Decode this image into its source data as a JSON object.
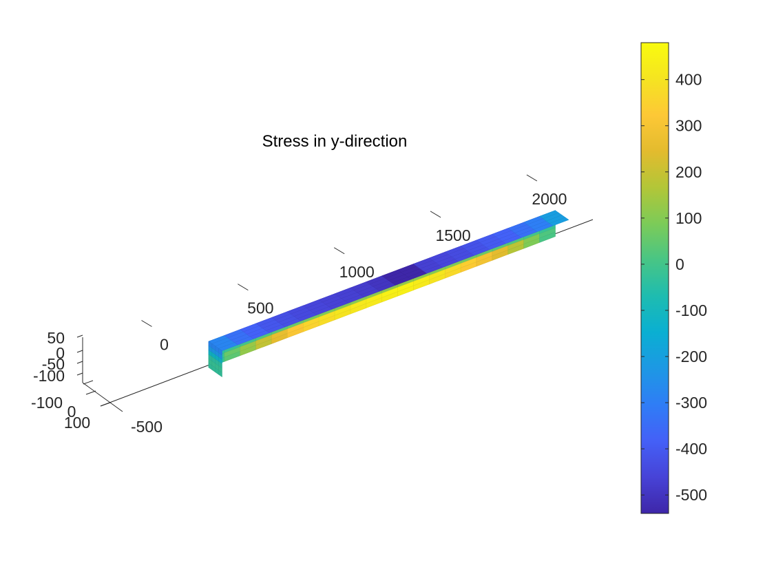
{
  "chart_data": {
    "type": "heatmap",
    "title": "Stress in y-direction",
    "x_axis": {
      "ticks": [
        0,
        500,
        1000,
        1500,
        2000
      ],
      "range": [
        -100,
        2000
      ]
    },
    "y_axis": {
      "ticks": [
        -500,
        0,
        100
      ],
      "tick_labels": [
        "-500",
        "0",
        "100"
      ],
      "range": [
        -600,
        100
      ]
    },
    "z_axis": {
      "ticks": [
        50,
        0,
        -50,
        -100
      ],
      "tick_labels": [
        "50",
        "0",
        "-50",
        "-100"
      ],
      "range": [
        -100,
        50
      ]
    },
    "extra_tick_labels": [
      "-100"
    ],
    "colorbar": {
      "ticks": [
        400,
        300,
        200,
        100,
        0,
        -100,
        -200,
        -300,
        -400,
        -500
      ],
      "range": [
        -540,
        480
      ],
      "colormap": "parula",
      "colors": [
        "#3e26a8",
        "#4743d7",
        "#4460f7",
        "#2f7df6",
        "#1d98e4",
        "#0aafd2",
        "#1ebcb0",
        "#48c585",
        "#7ccb58",
        "#b2c638",
        "#e3bb2e",
        "#fdc836",
        "#f5e421",
        "#f9fb0e"
      ]
    },
    "beam": {
      "length": 1800,
      "z_levels": [
        50,
        25,
        0,
        -25,
        -50,
        -75,
        -100
      ],
      "sections": 22,
      "layer_stress": [
        [
          -280,
          -340,
          -380,
          -410,
          -430,
          -445,
          -455,
          -465,
          -470,
          -480,
          -500,
          -540,
          -540,
          -470,
          -455,
          -440,
          -420,
          -400,
          -380,
          -340,
          -300,
          -210
        ],
        [
          -230,
          -280,
          -310,
          -330,
          -345,
          -360,
          -370,
          -375,
          -380,
          -385,
          -395,
          -420,
          -420,
          -385,
          -375,
          -365,
          -350,
          -335,
          -310,
          -280,
          -240,
          -160
        ],
        [
          -120,
          -150,
          -170,
          -180,
          -190,
          -200,
          -205,
          -210,
          -215,
          -220,
          -225,
          -240,
          -240,
          -220,
          -210,
          -205,
          -195,
          -185,
          -170,
          -150,
          -125,
          -80
        ],
        [
          -40,
          -20,
          0,
          20,
          40,
          60,
          80,
          90,
          100,
          105,
          110,
          120,
          120,
          110,
          100,
          90,
          75,
          60,
          40,
          20,
          0,
          -20
        ],
        [
          -20,
          60,
          130,
          200,
          260,
          320,
          360,
          390,
          410,
          420,
          430,
          445,
          450,
          430,
          410,
          380,
          340,
          300,
          250,
          180,
          100,
          20
        ],
        [
          -30,
          40,
          120,
          190,
          250,
          310,
          350,
          380,
          400,
          410,
          420,
          430,
          440,
          420,
          400,
          370,
          330,
          290,
          240,
          170,
          90,
          10
        ]
      ]
    }
  }
}
